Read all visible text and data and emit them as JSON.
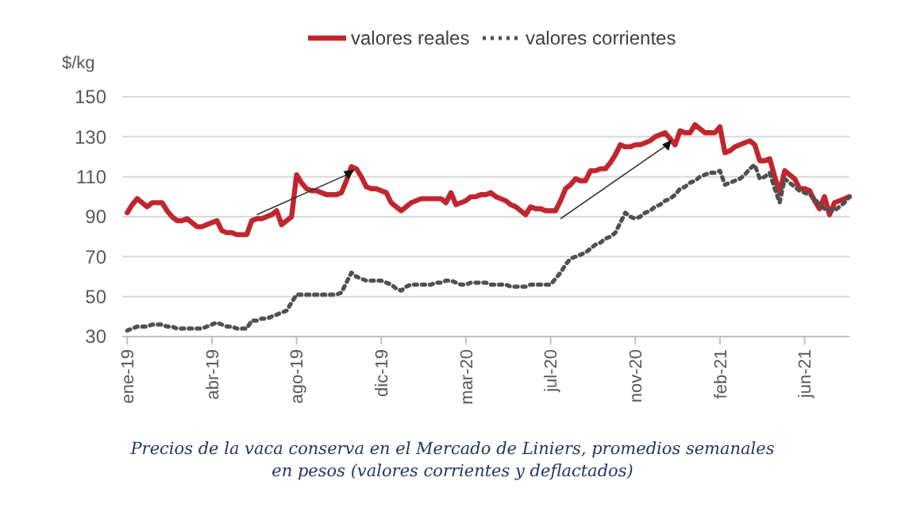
{
  "chart_data": {
    "type": "line",
    "ylabel": "$/kg",
    "ylim": [
      30,
      150
    ],
    "yticks": [
      30,
      50,
      70,
      90,
      110,
      130,
      150
    ],
    "categories": [
      "ene-19",
      null,
      null,
      null,
      null,
      null,
      null,
      null,
      null,
      null,
      null,
      null,
      null,
      null,
      null,
      null,
      null,
      "abr-19",
      null,
      null,
      null,
      null,
      null,
      null,
      null,
      null,
      null,
      null,
      null,
      null,
      null,
      null,
      null,
      null,
      "ago-19",
      null,
      null,
      null,
      null,
      null,
      null,
      null,
      null,
      null,
      null,
      null,
      null,
      null,
      null,
      null,
      null,
      "dic-19",
      null,
      null,
      null,
      null,
      null,
      null,
      null,
      null,
      null,
      null,
      null,
      null,
      null,
      null,
      null,
      null,
      "mar-20",
      null,
      null,
      null,
      null,
      null,
      null,
      null,
      null,
      null,
      null,
      null,
      null,
      null,
      null,
      null,
      null,
      "jul-20",
      null,
      null,
      null,
      null,
      null,
      null,
      null,
      null,
      null,
      null,
      null,
      null,
      null,
      null,
      null,
      null,
      "nov-20",
      null,
      null,
      null,
      null,
      null,
      null,
      null,
      null,
      null,
      null,
      null,
      null,
      null,
      null,
      null,
      null,
      "feb-21",
      null,
      null,
      null,
      null,
      null,
      null,
      null,
      null,
      null,
      null,
      null,
      null,
      null,
      null,
      null,
      null,
      "jun-21",
      null,
      null,
      null,
      null,
      null,
      null,
      null,
      null,
      null
    ],
    "grid": "y",
    "legend": "top",
    "series": [
      {
        "name": "valores reales",
        "color": "#c0262d",
        "line_style": "solid",
        "values": [
          92,
          96,
          99,
          97,
          95,
          97,
          97,
          97,
          93,
          90,
          88,
          88,
          89,
          87,
          85,
          85,
          86,
          87,
          88,
          83,
          82,
          82,
          81,
          81,
          81,
          88,
          89,
          89,
          90,
          91,
          93,
          86,
          88,
          90,
          111,
          107,
          104,
          103,
          103,
          102,
          101,
          101,
          101,
          102,
          108,
          115,
          114,
          110,
          105,
          104,
          104,
          103,
          102,
          97,
          95,
          93,
          95,
          97,
          98,
          99,
          99,
          99,
          99,
          99,
          97,
          102,
          96,
          97,
          98,
          100,
          100,
          101,
          101,
          102,
          100,
          99,
          98,
          96,
          95,
          93,
          91,
          95,
          94,
          94,
          93,
          93,
          93,
          98,
          104,
          106,
          109,
          108,
          108,
          113,
          113,
          114,
          114,
          117,
          121,
          126,
          125,
          125,
          126,
          126,
          127,
          128,
          130,
          131,
          132,
          129,
          126,
          133,
          132,
          132,
          136,
          134,
          132,
          132,
          132,
          135,
          122,
          123,
          125,
          126,
          127,
          128,
          126,
          118,
          118,
          119,
          110,
          102,
          113,
          111,
          109,
          104,
          104,
          103,
          98,
          94,
          100,
          91,
          97,
          98,
          99,
          100
        ]
      },
      {
        "name": "valores corrientes",
        "color": "#505050",
        "line_style": "dotted",
        "values": [
          33,
          34,
          35,
          35,
          35,
          36,
          36,
          36,
          35,
          35,
          34,
          34,
          34,
          34,
          34,
          34,
          35,
          36,
          37,
          36,
          35,
          35,
          34,
          34,
          34,
          38,
          38,
          39,
          39,
          40,
          41,
          42,
          43,
          47,
          51,
          51,
          51,
          51,
          51,
          51,
          51,
          51,
          51,
          52,
          57,
          62,
          60,
          59,
          58,
          58,
          58,
          58,
          57,
          56,
          54,
          53,
          55,
          56,
          56,
          56,
          56,
          56,
          57,
          57,
          58,
          58,
          57,
          56,
          56,
          57,
          57,
          57,
          57,
          56,
          56,
          56,
          56,
          55,
          55,
          55,
          55,
          56,
          56,
          56,
          56,
          56,
          59,
          62,
          66,
          69,
          70,
          71,
          72,
          74,
          76,
          77,
          79,
          80,
          82,
          87,
          92,
          90,
          89,
          90,
          92,
          93,
          95,
          96,
          98,
          99,
          101,
          104,
          105,
          107,
          108,
          110,
          111,
          112,
          112,
          113,
          106,
          107,
          108,
          109,
          111,
          114,
          116,
          109,
          110,
          112,
          104,
          97,
          109,
          107,
          105,
          103,
          102,
          101,
          99,
          96,
          94,
          93,
          93,
          95,
          97,
          100
        ]
      }
    ],
    "annotations": [
      "Precios de la vaca conserva en el Mercado de Liniers, promedios semanales en pesos (valores corrientes y deflactados)"
    ]
  }
}
